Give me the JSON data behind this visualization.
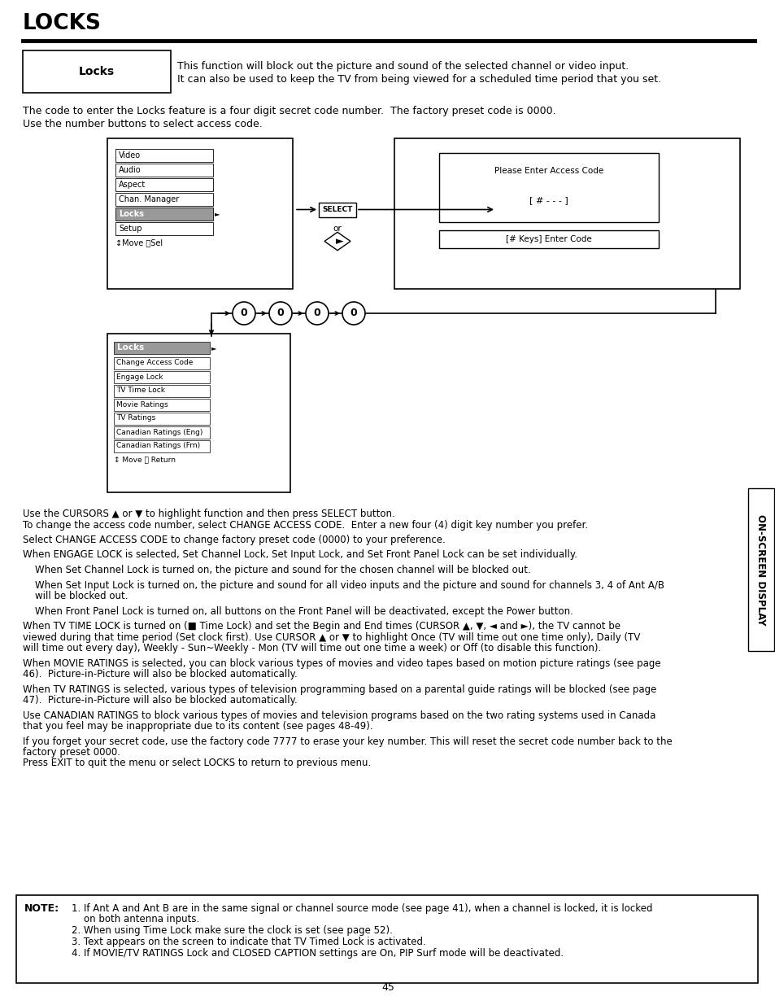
{
  "title": "LOCKS",
  "page_number": "45",
  "bg_color": "#ffffff",
  "sidebar_text": "ON-SCREEN DISPLAY",
  "locks_box_label": "Locks",
  "locks_desc_line1": "This function will block out the picture and sound of the selected channel or video input.",
  "locks_desc_line2": "It can also be used to keep the TV from being viewed for a scheduled time period that you set.",
  "intro_line1": "The code to enter the Locks feature is a four digit secret code number.  The factory preset code is 0000.",
  "intro_line2": "Use the number buttons to select access code.",
  "menu1_items": [
    "Video",
    "Audio",
    "Aspect",
    "Chan. Manager",
    "Locks",
    "Setup"
  ],
  "menu1_last": "↕Move ⓎSel",
  "menu1_highlight": "Locks",
  "menu2_title": "Locks",
  "menu2_items": [
    "Change Access Code",
    "Engage Lock",
    "TV Time Lock",
    "Movie Ratings",
    "TV Ratings",
    "Canadian Ratings (Eng)",
    "Canadian Ratings (Frn)"
  ],
  "menu2_last": "↕ Move Ⓨ Return",
  "body_paragraphs": [
    [
      "Use the CURSORS ▲ or ▼ to highlight function and then press SELECT button.",
      "To change the access code number, select CHANGE ACCESS CODE.  Enter a new four (4) digit key number you prefer."
    ],
    [
      "Select CHANGE ACCESS CODE to change factory preset code (0000) to your preference."
    ],
    [
      "When ENGAGE LOCK is selected, Set Channel Lock, Set Input Lock, and Set Front Panel Lock can be set individually."
    ],
    [
      "    When Set Channel Lock is turned on, the picture and sound for the chosen channel will be blocked out."
    ],
    [
      "    When Set Input Lock is turned on, the picture and sound for all video inputs and the picture and sound for channels 3, 4 of Ant A/B",
      "    will be blocked out."
    ],
    [
      "    When Front Panel Lock is turned on, all buttons on the Front Panel will be deactivated, except the Power button."
    ],
    [
      "When TV TIME LOCK is turned on (■ Time Lock) and set the Begin and End times (CURSOR ▲, ▼, ◄ and ►), the TV cannot be",
      "viewed during that time period (Set clock first). Use CURSOR ▲ or ▼ to highlight Once (TV will time out one time only), Daily (TV",
      "will time out every day), Weekly - Sun~Weekly - Mon (TV will time out one time a week) or Off (to disable this function)."
    ],
    [
      "When MOVIE RATINGS is selected, you can block various types of movies and video tapes based on motion picture ratings (see page",
      "46).  Picture-in-Picture will also be blocked automatically."
    ],
    [
      "When TV RATINGS is selected, various types of television programming based on a parental guide ratings will be blocked (see page",
      "47).  Picture-in-Picture will also be blocked automatically."
    ],
    [
      "Use CANADIAN RATINGS to block various types of movies and television programs based on the two rating systems used in Canada",
      "that you feel may be inappropriate due to its content (see pages 48-49)."
    ],
    [
      "If you forget your secret code, use the factory code 7777 to erase your key number. This will reset the secret code number back to the",
      "factory preset 0000.",
      "Press EXIT to quit the menu or select LOCKS to return to previous menu."
    ]
  ],
  "note_label": "NOTE:",
  "note_items": [
    [
      "1. If Ant A and Ant B are in the same signal or channel source mode (see page 41), when a channel is locked, it is locked",
      "    on both antenna inputs."
    ],
    [
      "2. When using Time Lock make sure the clock is set (see page 52)."
    ],
    [
      "3. Text appears on the screen to indicate that TV Timed Lock is activated."
    ],
    [
      "4. If MOVIE/TV RATINGS Lock and CLOSED CAPTION settings are On, PIP Surf mode will be deactivated."
    ]
  ]
}
